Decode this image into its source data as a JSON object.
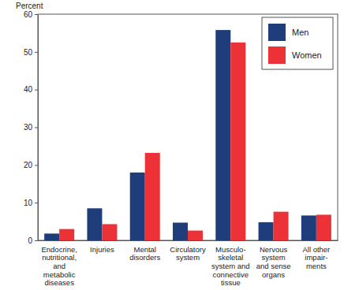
{
  "chart_data": {
    "type": "bar",
    "y_label": "Percent",
    "categories": [
      "Endocrine,\nnutritional,\nand\nmetabolic\ndiseases",
      "Injuries",
      "Mental\ndisorders",
      "Circulatory\nsystem",
      "Musculo-\nskeletal\nsystem and\nconnective\ntissue",
      "Nervous\nsystem\nand sense\norgans",
      "All other\nimpair-\nments"
    ],
    "series": [
      {
        "name": "Men",
        "color": "#1f3d7a",
        "values": [
          1.8,
          8.5,
          18,
          4.7,
          55.8,
          4.8,
          6.6
        ]
      },
      {
        "name": "Women",
        "color": "#ec3237",
        "values": [
          3.0,
          4.3,
          23.2,
          2.6,
          52.5,
          7.6,
          6.8
        ]
      }
    ],
    "ylim": [
      0,
      60
    ],
    "yticks": [
      0,
      10,
      20,
      30,
      40,
      50,
      60
    ],
    "grid": false,
    "legend": "top-right"
  }
}
